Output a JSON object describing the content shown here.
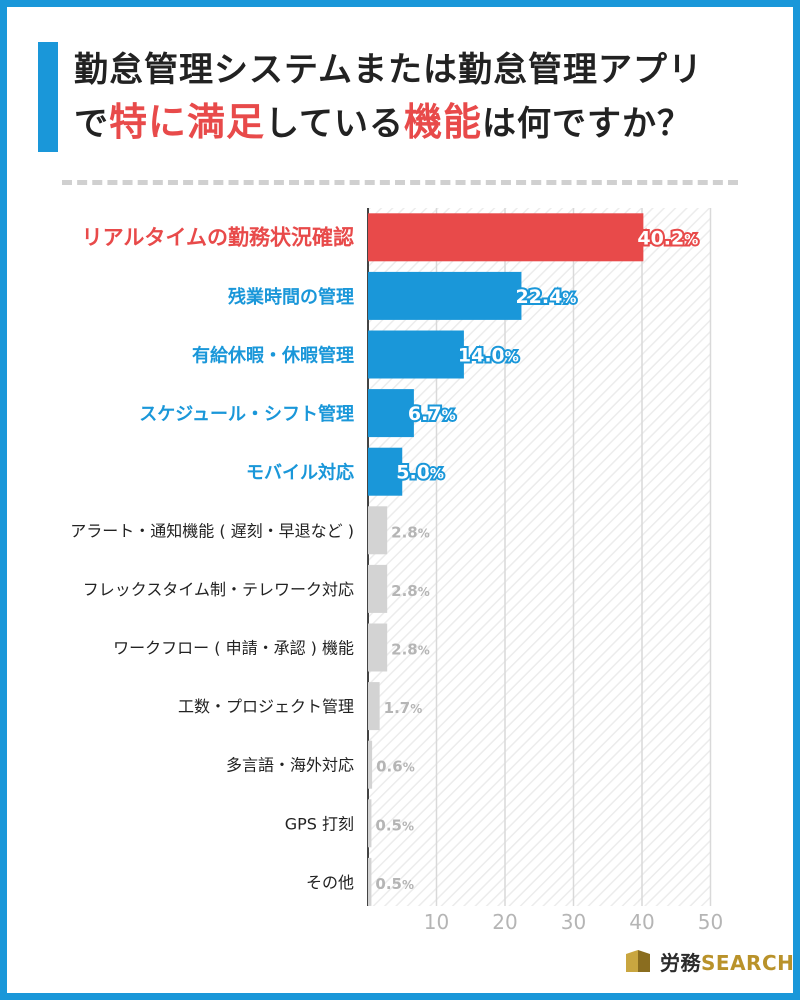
{
  "title": {
    "line1": "勤怠管理システムまたは勤怠管理アプリ",
    "line2_part1": "で",
    "line2_highlight1": "特に満足",
    "line2_part2": "している",
    "line2_highlight2": "機能",
    "line2_part3": "は何ですか？"
  },
  "brand": {
    "name_jp": "労務",
    "name_en": "SEARCH"
  },
  "colors": {
    "accent_blue": "#1a97d9",
    "highlight_red": "#e84a4a",
    "gray_bar": "#d3d3d3",
    "gray_text": "#b5b5b5"
  },
  "chart_data": {
    "type": "bar",
    "orientation": "horizontal",
    "categories": [
      "リアルタイムの勤務状況確認",
      "残業時間の管理",
      "有給休暇・休暇管理",
      "スケジュール・シフト管理",
      "モバイル対応",
      "アラート・通知機能 ( 遅刻・早退など )",
      "フレックスタイム制・テレワーク対応",
      "ワークフロー ( 申請・承認 ) 機能",
      "工数・プロジェクト管理",
      "多言語・海外対応",
      "GPS 打刻",
      "その他"
    ],
    "values": [
      40.2,
      22.4,
      14.0,
      6.7,
      5.0,
      2.8,
      2.8,
      2.8,
      1.7,
      0.6,
      0.5,
      0.5
    ],
    "value_labels": [
      "40.2",
      "22.4",
      "14.0",
      "6.7",
      "5.0",
      "2.8",
      "2.8",
      "2.8",
      "1.7",
      "0.6",
      "0.5",
      "0.5"
    ],
    "unit": "%",
    "bar_colors": [
      "red",
      "blue",
      "blue",
      "blue",
      "blue",
      "gray",
      "gray",
      "gray",
      "gray",
      "gray",
      "gray",
      "gray"
    ],
    "xlim": [
      0,
      50
    ],
    "xticks": [
      10,
      20,
      30,
      40,
      50
    ],
    "grid": true
  }
}
